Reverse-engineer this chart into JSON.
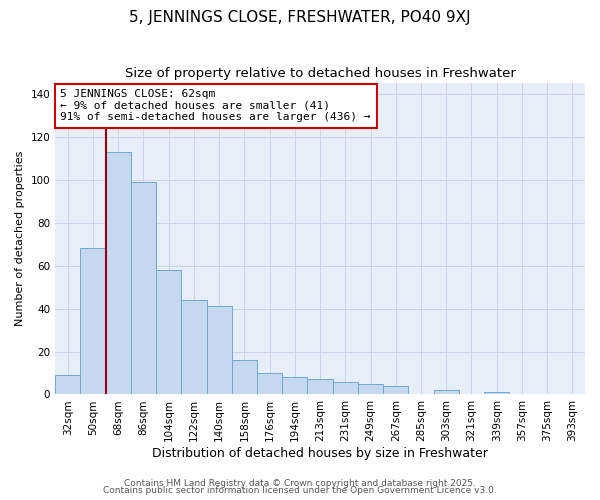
{
  "title": "5, JENNINGS CLOSE, FRESHWATER, PO40 9XJ",
  "subtitle": "Size of property relative to detached houses in Freshwater",
  "xlabel": "Distribution of detached houses by size in Freshwater",
  "ylabel": "Number of detached properties",
  "bar_labels": [
    "32sqm",
    "50sqm",
    "68sqm",
    "86sqm",
    "104sqm",
    "122sqm",
    "140sqm",
    "158sqm",
    "176sqm",
    "194sqm",
    "213sqm",
    "231sqm",
    "249sqm",
    "267sqm",
    "285sqm",
    "303sqm",
    "321sqm",
    "339sqm",
    "357sqm",
    "375sqm",
    "393sqm"
  ],
  "bar_values": [
    9,
    68,
    113,
    99,
    58,
    44,
    41,
    16,
    10,
    8,
    7,
    6,
    5,
    4,
    0,
    2,
    0,
    1,
    0,
    0,
    0
  ],
  "bar_color": "#c5d8f0",
  "bar_edge_color": "#6aaad4",
  "background_color": "#ffffff",
  "plot_bg_color": "#e8eef8",
  "grid_color": "#c8d4e8",
  "ylim": [
    0,
    145
  ],
  "vline_color": "#990000",
  "annotation_title": "5 JENNINGS CLOSE: 62sqm",
  "annotation_line1": "← 9% of detached houses are smaller (41)",
  "annotation_line2": "91% of semi-detached houses are larger (436) →",
  "annotation_box_facecolor": "#ffffff",
  "annotation_box_edge": "#cc0000",
  "footer1": "Contains HM Land Registry data © Crown copyright and database right 2025.",
  "footer2": "Contains public sector information licensed under the Open Government Licence v3.0.",
  "title_fontsize": 11,
  "subtitle_fontsize": 9.5,
  "xlabel_fontsize": 9,
  "ylabel_fontsize": 8,
  "tick_fontsize": 7.5,
  "footer_fontsize": 6.5
}
